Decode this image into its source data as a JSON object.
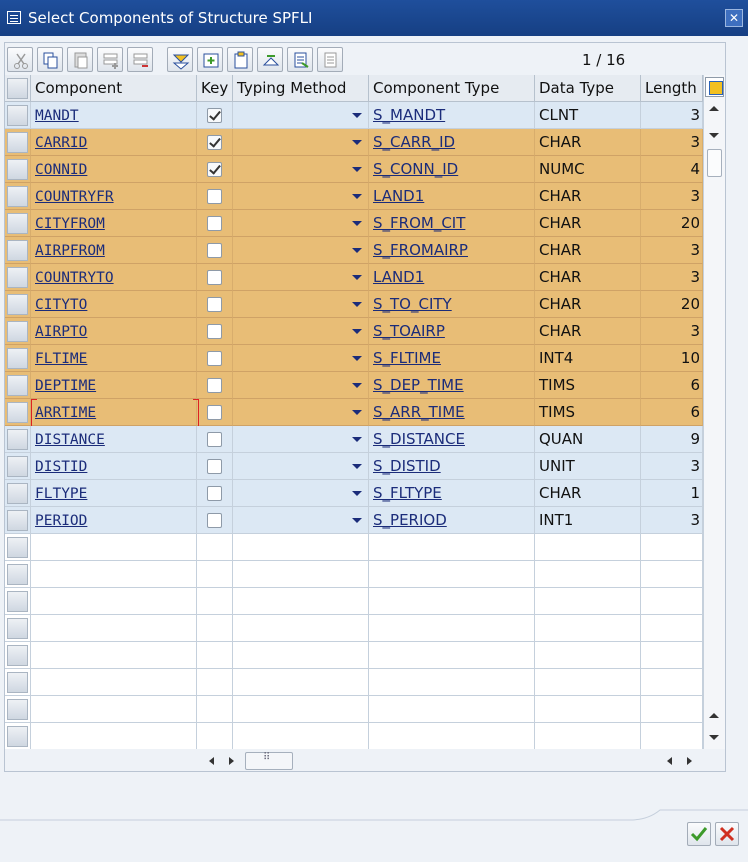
{
  "window": {
    "title": "Select Components of Structure SPFLI"
  },
  "toolbar": {
    "buttons": [
      "cut-icon",
      "copy-icon",
      "paste-icon",
      "insert-row-icon",
      "delete-row-icon",
      "select-all-icon",
      "copy-selected-icon",
      "paste-selected-icon",
      "sort-icon",
      "details-icon",
      "append-icon"
    ],
    "pager": "1 / 16"
  },
  "grid": {
    "headers": {
      "component": "Component",
      "key": "Key",
      "typing": "Typing Method",
      "ctype": "Component Type",
      "dtype": "Data Type",
      "length": "Length"
    },
    "rows": [
      {
        "component": "MANDT",
        "key": true,
        "ctype": "S_MANDT",
        "dtype": "CLNT",
        "length": "3",
        "selected": false
      },
      {
        "component": "CARRID",
        "key": true,
        "ctype": "S_CARR_ID",
        "dtype": "CHAR",
        "length": "3",
        "selected": true
      },
      {
        "component": "CONNID",
        "key": true,
        "ctype": "S_CONN_ID",
        "dtype": "NUMC",
        "length": "4",
        "selected": true
      },
      {
        "component": "COUNTRYFR",
        "key": false,
        "ctype": "LAND1",
        "dtype": "CHAR",
        "length": "3",
        "selected": true
      },
      {
        "component": "CITYFROM",
        "key": false,
        "ctype": "S_FROM_CIT",
        "dtype": "CHAR",
        "length": "20",
        "selected": true
      },
      {
        "component": "AIRPFROM",
        "key": false,
        "ctype": "S_FROMAIRP",
        "dtype": "CHAR",
        "length": "3",
        "selected": true
      },
      {
        "component": "COUNTRYTO",
        "key": false,
        "ctype": "LAND1",
        "dtype": "CHAR",
        "length": "3",
        "selected": true
      },
      {
        "component": "CITYTO",
        "key": false,
        "ctype": "S_TO_CITY",
        "dtype": "CHAR",
        "length": "20",
        "selected": true
      },
      {
        "component": "AIRPTO",
        "key": false,
        "ctype": "S_TOAIRP",
        "dtype": "CHAR",
        "length": "3",
        "selected": true
      },
      {
        "component": "FLTIME",
        "key": false,
        "ctype": "S_FLTIME",
        "dtype": "INT4",
        "length": "10",
        "selected": true
      },
      {
        "component": "DEPTIME",
        "key": false,
        "ctype": "S_DEP_TIME",
        "dtype": "TIMS",
        "length": "6",
        "selected": true
      },
      {
        "component": "ARRTIME",
        "key": false,
        "ctype": "S_ARR_TIME",
        "dtype": "TIMS",
        "length": "6",
        "selected": true,
        "focused": true
      },
      {
        "component": "DISTANCE",
        "key": false,
        "ctype": "S_DISTANCE",
        "dtype": "QUAN",
        "length": "9",
        "selected": false
      },
      {
        "component": "DISTID",
        "key": false,
        "ctype": "S_DISTID",
        "dtype": "UNIT",
        "length": "3",
        "selected": false
      },
      {
        "component": "FLTYPE",
        "key": false,
        "ctype": "S_FLTYPE",
        "dtype": "CHAR",
        "length": "1",
        "selected": false
      },
      {
        "component": "PERIOD",
        "key": false,
        "ctype": "S_PERIOD",
        "dtype": "INT1",
        "length": "3",
        "selected": false
      }
    ],
    "empty_rows": 8
  },
  "colors": {
    "selected_row": "#e8bd76",
    "unselected_row": "#dce8f4",
    "titlebar": "#1f4f9c",
    "link": "#1b2c7a"
  },
  "footer": {
    "buttons": [
      "ok-icon",
      "cancel-icon"
    ]
  }
}
